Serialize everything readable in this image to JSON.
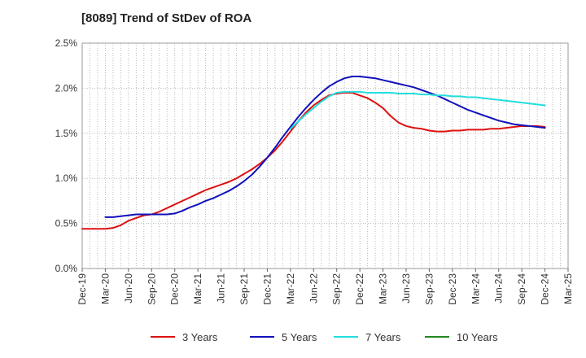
{
  "chart_data": {
    "type": "line",
    "title": "[8089]  Trend of StDev of ROA",
    "xlabel": "",
    "ylabel": "",
    "ylim": [
      0,
      2.5
    ],
    "y_ticks": [
      "0.0%",
      "0.5%",
      "1.0%",
      "1.5%",
      "2.0%",
      "2.5%"
    ],
    "y_tick_values": [
      0,
      0.5,
      1.0,
      1.5,
      2.0,
      2.5
    ],
    "x_tick_labels": [
      "Dec-19",
      "Mar-20",
      "Jun-20",
      "Sep-20",
      "Dec-20",
      "Mar-21",
      "Jun-21",
      "Sep-21",
      "Dec-21",
      "Mar-22",
      "Jun-22",
      "Sep-22",
      "Dec-22",
      "Mar-23",
      "Jun-23",
      "Sep-23",
      "Dec-23",
      "Mar-24",
      "Jun-24",
      "Sep-24",
      "Dec-24",
      "Mar-25"
    ],
    "x_range_months": [
      0,
      63
    ],
    "grid": true,
    "legend_position": "bottom",
    "series": [
      {
        "name": "3 Years",
        "color": "#dd1111",
        "points": [
          [
            0,
            0.44
          ],
          [
            1,
            0.44
          ],
          [
            2,
            0.44
          ],
          [
            3,
            0.44
          ],
          [
            4,
            0.45
          ],
          [
            5,
            0.48
          ],
          [
            6,
            0.53
          ],
          [
            7,
            0.56
          ],
          [
            8,
            0.59
          ],
          [
            9,
            0.6
          ],
          [
            10,
            0.63
          ],
          [
            11,
            0.67
          ],
          [
            12,
            0.71
          ],
          [
            13,
            0.75
          ],
          [
            14,
            0.79
          ],
          [
            15,
            0.83
          ],
          [
            16,
            0.87
          ],
          [
            17,
            0.9
          ],
          [
            18,
            0.93
          ],
          [
            19,
            0.96
          ],
          [
            20,
            1.0
          ],
          [
            21,
            1.05
          ],
          [
            22,
            1.1
          ],
          [
            23,
            1.16
          ],
          [
            24,
            1.23
          ],
          [
            25,
            1.31
          ],
          [
            26,
            1.41
          ],
          [
            27,
            1.52
          ],
          [
            28,
            1.63
          ],
          [
            29,
            1.73
          ],
          [
            30,
            1.81
          ],
          [
            31,
            1.87
          ],
          [
            32,
            1.92
          ],
          [
            33,
            1.94
          ],
          [
            34,
            1.95
          ],
          [
            35,
            1.95
          ],
          [
            36,
            1.92
          ],
          [
            37,
            1.89
          ],
          [
            38,
            1.84
          ],
          [
            39,
            1.78
          ],
          [
            40,
            1.69
          ],
          [
            41,
            1.62
          ],
          [
            42,
            1.58
          ],
          [
            43,
            1.56
          ],
          [
            44,
            1.55
          ],
          [
            45,
            1.53
          ],
          [
            46,
            1.52
          ],
          [
            47,
            1.52
          ],
          [
            48,
            1.53
          ],
          [
            49,
            1.53
          ],
          [
            50,
            1.54
          ],
          [
            51,
            1.54
          ],
          [
            52,
            1.54
          ],
          [
            53,
            1.55
          ],
          [
            54,
            1.55
          ],
          [
            55,
            1.56
          ],
          [
            56,
            1.57
          ],
          [
            57,
            1.58
          ],
          [
            58,
            1.58
          ],
          [
            59,
            1.58
          ],
          [
            60,
            1.57
          ]
        ]
      },
      {
        "name": "5 Years",
        "color": "#1111bb",
        "points": [
          [
            3,
            0.57
          ],
          [
            4,
            0.57
          ],
          [
            5,
            0.58
          ],
          [
            6,
            0.59
          ],
          [
            7,
            0.6
          ],
          [
            8,
            0.6
          ],
          [
            9,
            0.6
          ],
          [
            10,
            0.6
          ],
          [
            11,
            0.6
          ],
          [
            12,
            0.61
          ],
          [
            13,
            0.64
          ],
          [
            14,
            0.68
          ],
          [
            15,
            0.71
          ],
          [
            16,
            0.75
          ],
          [
            17,
            0.78
          ],
          [
            18,
            0.82
          ],
          [
            19,
            0.86
          ],
          [
            20,
            0.91
          ],
          [
            21,
            0.97
          ],
          [
            22,
            1.04
          ],
          [
            23,
            1.13
          ],
          [
            24,
            1.23
          ],
          [
            25,
            1.34
          ],
          [
            26,
            1.46
          ],
          [
            27,
            1.57
          ],
          [
            28,
            1.68
          ],
          [
            29,
            1.78
          ],
          [
            30,
            1.87
          ],
          [
            31,
            1.95
          ],
          [
            32,
            2.02
          ],
          [
            33,
            2.07
          ],
          [
            34,
            2.11
          ],
          [
            35,
            2.13
          ],
          [
            36,
            2.13
          ],
          [
            37,
            2.12
          ],
          [
            38,
            2.11
          ],
          [
            39,
            2.09
          ],
          [
            40,
            2.07
          ],
          [
            41,
            2.05
          ],
          [
            42,
            2.03
          ],
          [
            43,
            2.01
          ],
          [
            44,
            1.98
          ],
          [
            45,
            1.95
          ],
          [
            46,
            1.92
          ],
          [
            47,
            1.88
          ],
          [
            48,
            1.84
          ],
          [
            49,
            1.8
          ],
          [
            50,
            1.76
          ],
          [
            51,
            1.73
          ],
          [
            52,
            1.7
          ],
          [
            53,
            1.67
          ],
          [
            54,
            1.64
          ],
          [
            55,
            1.62
          ],
          [
            56,
            1.6
          ],
          [
            57,
            1.59
          ],
          [
            58,
            1.58
          ],
          [
            59,
            1.57
          ],
          [
            60,
            1.56
          ]
        ]
      },
      {
        "name": "7 Years",
        "color": "#22dddd",
        "points": [
          [
            27,
            1.55
          ],
          [
            28,
            1.63
          ],
          [
            29,
            1.71
          ],
          [
            30,
            1.78
          ],
          [
            31,
            1.85
          ],
          [
            32,
            1.91
          ],
          [
            33,
            1.95
          ],
          [
            34,
            1.96
          ],
          [
            35,
            1.96
          ],
          [
            36,
            1.96
          ],
          [
            37,
            1.95
          ],
          [
            38,
            1.95
          ],
          [
            39,
            1.95
          ],
          [
            40,
            1.95
          ],
          [
            41,
            1.94
          ],
          [
            42,
            1.94
          ],
          [
            43,
            1.94
          ],
          [
            44,
            1.93
          ],
          [
            45,
            1.93
          ],
          [
            46,
            1.92
          ],
          [
            47,
            1.92
          ],
          [
            48,
            1.91
          ],
          [
            49,
            1.91
          ],
          [
            50,
            1.9
          ],
          [
            51,
            1.9
          ],
          [
            52,
            1.89
          ],
          [
            53,
            1.88
          ],
          [
            54,
            1.87
          ],
          [
            55,
            1.86
          ],
          [
            56,
            1.85
          ],
          [
            57,
            1.84
          ],
          [
            58,
            1.83
          ],
          [
            59,
            1.82
          ],
          [
            60,
            1.81
          ]
        ]
      },
      {
        "name": "10 Years",
        "color": "#228822",
        "points": []
      }
    ]
  }
}
